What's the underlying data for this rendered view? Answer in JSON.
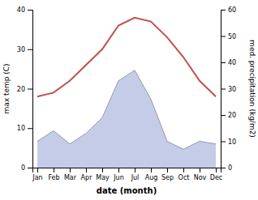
{
  "chart_data": {
    "type": "line",
    "categories": [
      "Jan",
      "Feb",
      "Mar",
      "Apr",
      "May",
      "Jun",
      "Jul",
      "Aug",
      "Sep",
      "Oct",
      "Nov",
      "Dec"
    ],
    "series": [
      {
        "type": "area",
        "axis": "y2",
        "color": "#c5cce8",
        "values": [
          10,
          14,
          9,
          13,
          19,
          33,
          37,
          26,
          10,
          7,
          10,
          9
        ]
      },
      {
        "type": "line",
        "color": "#c0504d",
        "values": [
          18,
          19,
          22,
          26,
          30,
          36,
          38,
          37,
          33,
          28,
          22,
          18
        ]
      }
    ],
    "xlabel": "date (month)",
    "ylabel": "max temp (C)",
    "y2label": "med. precipitation (kg/m2)",
    "ylim": [
      0,
      40
    ],
    "yticks": [
      0,
      10,
      20,
      30,
      40
    ],
    "y2lim": [
      0,
      60
    ],
    "y2ticks": [
      0,
      10,
      20,
      30,
      40,
      50,
      60
    ],
    "grid": false
  }
}
